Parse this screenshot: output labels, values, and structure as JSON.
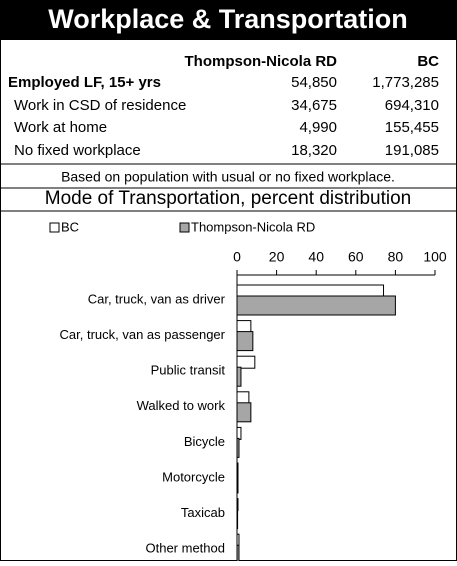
{
  "header": {
    "title": "Workplace & Transportation"
  },
  "table": {
    "columns": [
      "Thompson-Nicola RD",
      "BC"
    ],
    "rows": [
      {
        "label": "Employed LF, 15+ yrs",
        "values": [
          "54,850",
          "1,773,285"
        ]
      },
      {
        "label": "Work in CSD of residence",
        "values": [
          "34,675",
          "694,310"
        ]
      },
      {
        "label": "Work at home",
        "values": [
          "4,990",
          "155,455"
        ]
      },
      {
        "label": "No fixed workplace",
        "values": [
          "18,320",
          "191,085"
        ]
      }
    ],
    "note": "Based on population with usual or no fixed workplace."
  },
  "chart_data": {
    "type": "hbar",
    "title": "Mode of Transportation, percent distribution",
    "categories": [
      "Car, truck, van as driver",
      "Car, truck, van as passenger",
      "Public transit",
      "Walked to work",
      "Bicycle",
      "Motorcycle",
      "Taxicab",
      "Other method"
    ],
    "series": [
      {
        "name": "BC",
        "color": "#ffffff",
        "values": [
          74,
          7,
          9,
          6,
          2,
          0.5,
          0.5,
          1
        ]
      },
      {
        "name": "Thompson-Nicola RD",
        "color": "#a6a6a6",
        "values": [
          80,
          8,
          2,
          7,
          1,
          0.5,
          0.3,
          1
        ]
      }
    ],
    "xlim": [
      0,
      100
    ],
    "xticks": [
      0,
      20,
      40,
      60,
      80,
      100
    ],
    "legend": "top"
  }
}
